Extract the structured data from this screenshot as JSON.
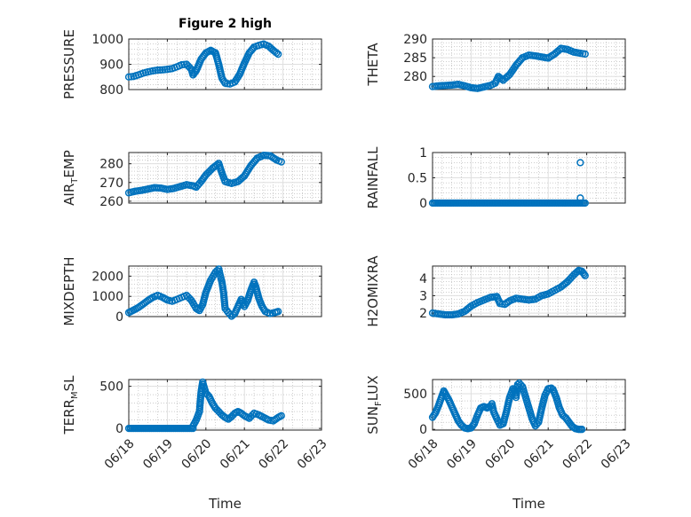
{
  "chart_data": [
    {
      "type": "scatter",
      "title": "Figure 2 high",
      "ylabel": "PRESSURE",
      "xlim": [
        "06/18",
        "06/23"
      ],
      "ylim": [
        800,
        1000
      ],
      "yticks": [
        "800",
        "900",
        "1000"
      ],
      "grid": true,
      "points": [
        [
          "06/18 00:00",
          850
        ],
        [
          "06/18 03:00",
          852
        ],
        [
          "06/18 06:00",
          858
        ],
        [
          "06/18 09:00",
          865
        ],
        [
          "06/18 12:00",
          870
        ],
        [
          "06/18 15:00",
          874
        ],
        [
          "06/18 18:00",
          877
        ],
        [
          "06/18 21:00",
          878
        ],
        [
          "06/19 00:00",
          880
        ],
        [
          "06/19 03:00",
          883
        ],
        [
          "06/19 06:00",
          890
        ],
        [
          "06/19 09:00",
          898
        ],
        [
          "06/19 12:00",
          900
        ],
        [
          "06/19 15:00",
          880
        ],
        [
          "06/19 16:00",
          858
        ],
        [
          "06/19 18:00",
          875
        ],
        [
          "06/19 21:00",
          920
        ],
        [
          "06/20 00:00",
          945
        ],
        [
          "06/20 03:00",
          955
        ],
        [
          "06/20 06:00",
          945
        ],
        [
          "06/20 08:00",
          900
        ],
        [
          "06/20 10:00",
          845
        ],
        [
          "06/20 12:00",
          825
        ],
        [
          "06/20 15:00",
          822
        ],
        [
          "06/20 18:00",
          830
        ],
        [
          "06/20 21:00",
          860
        ],
        [
          "06/21 00:00",
          905
        ],
        [
          "06/21 03:00",
          945
        ],
        [
          "06/21 06:00",
          968
        ],
        [
          "06/21 09:00",
          975
        ],
        [
          "06/21 12:00",
          980
        ],
        [
          "06/21 15:00",
          972
        ],
        [
          "06/21 18:00",
          955
        ],
        [
          "06/21 21:00",
          940
        ]
      ]
    },
    {
      "type": "scatter",
      "ylabel": "THETA",
      "xlim": [
        "06/18",
        "06/23"
      ],
      "ylim": [
        276.5,
        290
      ],
      "yticks": [
        "280",
        "285",
        "290"
      ],
      "grid": true,
      "points": [
        [
          "06/18 00:00",
          277.3
        ],
        [
          "06/18 04:00",
          277.5
        ],
        [
          "06/18 08:00",
          277.6
        ],
        [
          "06/18 12:00",
          277.7
        ],
        [
          "06/18 16:00",
          277.9
        ],
        [
          "06/18 20:00",
          277.5
        ],
        [
          "06/19 00:00",
          277.0
        ],
        [
          "06/19 04:00",
          276.8
        ],
        [
          "06/19 08:00",
          277.2
        ],
        [
          "06/19 12:00",
          277.6
        ],
        [
          "06/19 15:00",
          278.2
        ],
        [
          "06/19 17:00",
          280.0
        ],
        [
          "06/19 20:00",
          279.0
        ],
        [
          "06/20 00:00",
          280.5
        ],
        [
          "06/20 04:00",
          283.0
        ],
        [
          "06/20 08:00",
          285.0
        ],
        [
          "06/20 12:00",
          285.7
        ],
        [
          "06/20 16:00",
          285.5
        ],
        [
          "06/20 20:00",
          285.2
        ],
        [
          "06/21 00:00",
          284.9
        ],
        [
          "06/21 04:00",
          286.0
        ],
        [
          "06/21 08:00",
          287.5
        ],
        [
          "06/21 12:00",
          287.2
        ],
        [
          "06/21 16:00",
          286.5
        ],
        [
          "06/21 20:00",
          286.2
        ],
        [
          "06/21 23:00",
          286.0
        ]
      ]
    },
    {
      "type": "scatter",
      "ylabel": "AIR",
      "ylabel_subscript": "T",
      "ylabel_suffix": "EMP",
      "xlim": [
        "06/18",
        "06/23"
      ],
      "ylim": [
        259,
        286
      ],
      "yticks": [
        "260",
        "270",
        "280"
      ],
      "grid": true,
      "points": [
        [
          "06/18 00:00",
          264.5
        ],
        [
          "06/18 04:00",
          265.3
        ],
        [
          "06/18 08:00",
          265.8
        ],
        [
          "06/18 12:00",
          266.5
        ],
        [
          "06/18 16:00",
          267.2
        ],
        [
          "06/18 20:00",
          267.0
        ],
        [
          "06/19 00:00",
          266.3
        ],
        [
          "06/19 04:00",
          266.8
        ],
        [
          "06/19 08:00",
          267.8
        ],
        [
          "06/19 12:00",
          268.8
        ],
        [
          "06/19 16:00",
          268.2
        ],
        [
          "06/19 18:00",
          267.5
        ],
        [
          "06/19 21:00",
          270.5
        ],
        [
          "06/20 00:00",
          274.0
        ],
        [
          "06/20 04:00",
          277.5
        ],
        [
          "06/20 08:00",
          280.2
        ],
        [
          "06/20 10:00",
          275.0
        ],
        [
          "06/20 12:00",
          270.5
        ],
        [
          "06/20 16:00",
          269.5
        ],
        [
          "06/20 20:00",
          270.5
        ],
        [
          "06/21 00:00",
          273.5
        ],
        [
          "06/21 04:00",
          279.0
        ],
        [
          "06/21 08:00",
          283.0
        ],
        [
          "06/21 12:00",
          284.5
        ],
        [
          "06/21 16:00",
          284.3
        ],
        [
          "06/21 20:00",
          282.0
        ],
        [
          "06/21 23:00",
          281.0
        ]
      ]
    },
    {
      "type": "scatter",
      "ylabel": "RAINFALL",
      "xlim": [
        "06/18",
        "06/23"
      ],
      "ylim": [
        0,
        1
      ],
      "yticks": [
        "0",
        "0.5",
        "1"
      ],
      "grid": true,
      "baseline_value": 0,
      "baseline_range": [
        "06/18 00:00",
        "06/21 23:00"
      ],
      "points": [
        [
          "06/21 20:00",
          0.8
        ],
        [
          "06/21 20:00",
          0.1
        ]
      ]
    },
    {
      "type": "scatter",
      "ylabel": "MIXDEPTH",
      "xlim": [
        "06/18",
        "06/23"
      ],
      "ylim": [
        0,
        2500
      ],
      "yticks": [
        "0",
        "1000",
        "2000"
      ],
      "grid": true,
      "points": [
        [
          "06/18 00:00",
          200
        ],
        [
          "06/18 03:00",
          320
        ],
        [
          "06/18 06:00",
          450
        ],
        [
          "06/18 09:00",
          620
        ],
        [
          "06/18 12:00",
          800
        ],
        [
          "06/18 15:00",
          950
        ],
        [
          "06/18 18:00",
          1050
        ],
        [
          "06/18 21:00",
          950
        ],
        [
          "06/19 00:00",
          820
        ],
        [
          "06/19 03:00",
          760
        ],
        [
          "06/19 06:00",
          850
        ],
        [
          "06/19 09:00",
          950
        ],
        [
          "06/19 12:00",
          1050
        ],
        [
          "06/19 15:00",
          800
        ],
        [
          "06/19 18:00",
          400
        ],
        [
          "06/19 20:00",
          300
        ],
        [
          "06/19 22:00",
          600
        ],
        [
          "06/20 00:00",
          1200
        ],
        [
          "06/20 03:00",
          1800
        ],
        [
          "06/20 06:00",
          2200
        ],
        [
          "06/20 08:00",
          2350
        ],
        [
          "06/20 10:00",
          1700
        ],
        [
          "06/20 11:00",
          1200
        ],
        [
          "06/20 12:00",
          400
        ],
        [
          "06/20 14:00",
          200
        ],
        [
          "06/20 16:00",
          20
        ],
        [
          "06/20 18:00",
          150
        ],
        [
          "06/20 20:00",
          500
        ],
        [
          "06/20 22:00",
          850
        ],
        [
          "06/21 00:00",
          500
        ],
        [
          "06/21 02:00",
          800
        ],
        [
          "06/21 04:00",
          1300
        ],
        [
          "06/21 06:00",
          1700
        ],
        [
          "06/21 07:00",
          1500
        ],
        [
          "06/21 09:00",
          900
        ],
        [
          "06/21 11:00",
          500
        ],
        [
          "06/21 13:00",
          250
        ],
        [
          "06/21 16:00",
          150
        ],
        [
          "06/21 19:00",
          200
        ],
        [
          "06/21 21:00",
          250
        ]
      ]
    },
    {
      "type": "scatter",
      "ylabel": "H2OMIXRA",
      "xlim": [
        "06/18",
        "06/23"
      ],
      "ylim": [
        1.8,
        4.7
      ],
      "yticks": [
        "2",
        "3",
        "4"
      ],
      "grid": true,
      "points": [
        [
          "06/18 00:00",
          2.0
        ],
        [
          "06/18 04:00",
          1.95
        ],
        [
          "06/18 08:00",
          1.9
        ],
        [
          "06/18 12:00",
          1.9
        ],
        [
          "06/18 16:00",
          1.95
        ],
        [
          "06/18 20:00",
          2.1
        ],
        [
          "06/19 00:00",
          2.4
        ],
        [
          "06/19 04:00",
          2.6
        ],
        [
          "06/19 08:00",
          2.75
        ],
        [
          "06/19 12:00",
          2.9
        ],
        [
          "06/19 16:00",
          2.95
        ],
        [
          "06/19 18:00",
          2.55
        ],
        [
          "06/19 21:00",
          2.5
        ],
        [
          "06/20 00:00",
          2.7
        ],
        [
          "06/20 04:00",
          2.85
        ],
        [
          "06/20 08:00",
          2.8
        ],
        [
          "06/20 12:00",
          2.75
        ],
        [
          "06/20 16:00",
          2.8
        ],
        [
          "06/20 20:00",
          3.0
        ],
        [
          "06/21 00:00",
          3.1
        ],
        [
          "06/21 04:00",
          3.3
        ],
        [
          "06/21 08:00",
          3.5
        ],
        [
          "06/21 12:00",
          3.8
        ],
        [
          "06/21 16:00",
          4.2
        ],
        [
          "06/21 19:00",
          4.45
        ],
        [
          "06/21 21:00",
          4.4
        ],
        [
          "06/21 23:00",
          4.15
        ]
      ]
    },
    {
      "type": "scatter",
      "ylabel": "TERR",
      "ylabel_subscript": "M",
      "ylabel_suffix": "SL",
      "xlim": [
        "06/18",
        "06/23"
      ],
      "ylim": [
        -20,
        580
      ],
      "yticks": [
        "0",
        "500"
      ],
      "grid": true,
      "baseline_value": 0,
      "baseline_range": [
        "06/18 00:00",
        "06/19 16:00"
      ],
      "points": [
        [
          "06/19 16:00",
          30
        ],
        [
          "06/19 18:00",
          100
        ],
        [
          "06/19 20:00",
          200
        ],
        [
          "06/19 21:00",
          430
        ],
        [
          "06/19 22:00",
          550
        ],
        [
          "06/20 00:00",
          420
        ],
        [
          "06/20 02:00",
          380
        ],
        [
          "06/20 04:00",
          300
        ],
        [
          "06/20 06:00",
          240
        ],
        [
          "06/20 08:00",
          200
        ],
        [
          "06/20 10:00",
          160
        ],
        [
          "06/20 12:00",
          130
        ],
        [
          "06/20 14:00",
          110
        ],
        [
          "06/20 16:00",
          140
        ],
        [
          "06/20 18:00",
          180
        ],
        [
          "06/20 20:00",
          200
        ],
        [
          "06/20 22:00",
          180
        ],
        [
          "06/21 00:00",
          150
        ],
        [
          "06/21 03:00",
          120
        ],
        [
          "06/21 06:00",
          180
        ],
        [
          "06/21 09:00",
          160
        ],
        [
          "06/21 12:00",
          130
        ],
        [
          "06/21 15:00",
          100
        ],
        [
          "06/21 18:00",
          90
        ],
        [
          "06/21 21:00",
          130
        ],
        [
          "06/21 23:00",
          150
        ]
      ]
    },
    {
      "type": "scatter",
      "ylabel": "SUN",
      "ylabel_subscript": "F",
      "ylabel_suffix": "LUX",
      "xlim": [
        "06/18",
        "06/23"
      ],
      "ylim": [
        -10,
        700
      ],
      "yticks": [
        "0",
        "500"
      ],
      "grid": true,
      "points": [
        [
          "06/18 00:00",
          170
        ],
        [
          "06/18 02:00",
          240
        ],
        [
          "06/18 04:00",
          350
        ],
        [
          "06/18 06:00",
          480
        ],
        [
          "06/18 07:00",
          540
        ],
        [
          "06/18 08:00",
          500
        ],
        [
          "06/18 10:00",
          420
        ],
        [
          "06/18 12:00",
          320
        ],
        [
          "06/18 14:00",
          220
        ],
        [
          "06/18 16:00",
          120
        ],
        [
          "06/18 18:00",
          60
        ],
        [
          "06/18 20:00",
          20
        ],
        [
          "06/18 22:00",
          10
        ],
        [
          "06/19 00:00",
          20
        ],
        [
          "06/19 02:00",
          80
        ],
        [
          "06/19 04:00",
          200
        ],
        [
          "06/19 06:00",
          300
        ],
        [
          "06/19 08:00",
          320
        ],
        [
          "06/19 10:00",
          300
        ],
        [
          "06/19 12:00",
          330
        ],
        [
          "06/19 13:00",
          360
        ],
        [
          "06/19 14:00",
          250
        ],
        [
          "06/19 16:00",
          150
        ],
        [
          "06/19 18:00",
          60
        ],
        [
          "06/19 20:00",
          80
        ],
        [
          "06/19 22:00",
          250
        ],
        [
          "06/20 00:00",
          450
        ],
        [
          "06/20 02:00",
          570
        ],
        [
          "06/20 03:00",
          560
        ],
        [
          "06/20 04:00",
          450
        ],
        [
          "06/20 05:00",
          630
        ],
        [
          "06/20 06:00",
          650
        ],
        [
          "06/20 08:00",
          600
        ],
        [
          "06/20 10:00",
          450
        ],
        [
          "06/20 12:00",
          300
        ],
        [
          "06/20 14:00",
          150
        ],
        [
          "06/20 16:00",
          50
        ],
        [
          "06/20 18:00",
          100
        ],
        [
          "06/20 20:00",
          300
        ],
        [
          "06/20 22:00",
          480
        ],
        [
          "06/21 00:00",
          570
        ],
        [
          "06/21 02:00",
          580
        ],
        [
          "06/21 03:00",
          560
        ],
        [
          "06/21 05:00",
          450
        ],
        [
          "06/21 07:00",
          300
        ],
        [
          "06/21 09:00",
          200
        ],
        [
          "06/21 11:00",
          160
        ],
        [
          "06/21 13:00",
          100
        ],
        [
          "06/21 15:00",
          40
        ],
        [
          "06/21 17:00",
          10
        ],
        [
          "06/21 19:00",
          0
        ],
        [
          "06/21 21:00",
          0
        ]
      ]
    }
  ],
  "x_ticks": [
    "06/18",
    "06/19",
    "06/20",
    "06/21",
    "06/22",
    "06/23"
  ],
  "x_label": "Time",
  "colors": {
    "marker": "#0072BD",
    "axes": "#262626",
    "grid_major": "#dfdfdf",
    "grid_minor": "#b0b0b0"
  }
}
